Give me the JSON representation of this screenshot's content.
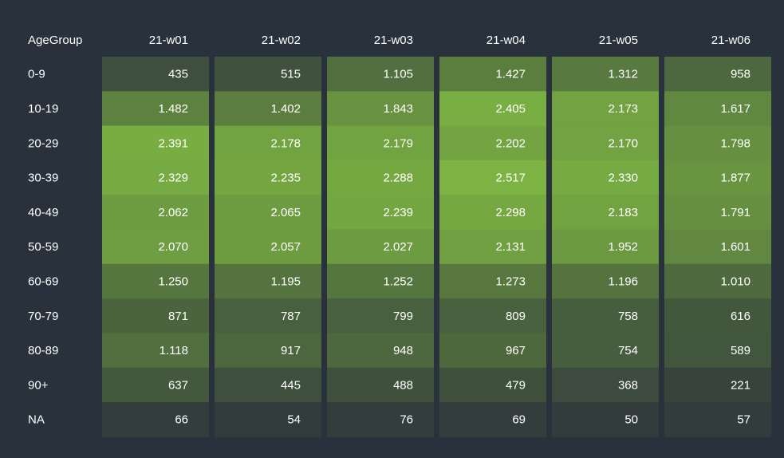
{
  "chart_data": {
    "type": "heatmap",
    "row_header": "AgeGroup",
    "columns": [
      "21-w01",
      "21-w02",
      "21-w03",
      "21-w04",
      "21-w05",
      "21-w06"
    ],
    "rows": [
      {
        "label": "0-9",
        "values": [
          "435",
          "515",
          "1.105",
          "1.427",
          "1.312",
          "958"
        ]
      },
      {
        "label": "10-19",
        "values": [
          "1.482",
          "1.402",
          "1.843",
          "2.405",
          "2.173",
          "1.617"
        ]
      },
      {
        "label": "20-29",
        "values": [
          "2.391",
          "2.178",
          "2.179",
          "2.202",
          "2.170",
          "1.798"
        ]
      },
      {
        "label": "30-39",
        "values": [
          "2.329",
          "2.235",
          "2.288",
          "2.517",
          "2.330",
          "1.877"
        ]
      },
      {
        "label": "40-49",
        "values": [
          "2.062",
          "2.065",
          "2.239",
          "2.298",
          "2.183",
          "1.791"
        ]
      },
      {
        "label": "50-59",
        "values": [
          "2.070",
          "2.057",
          "2.027",
          "2.131",
          "1.952",
          "1.601"
        ]
      },
      {
        "label": "60-69",
        "values": [
          "1.250",
          "1.195",
          "1.252",
          "1.273",
          "1.196",
          "1.010"
        ]
      },
      {
        "label": "70-79",
        "values": [
          "871",
          "787",
          "799",
          "809",
          "758",
          "616"
        ]
      },
      {
        "label": "80-89",
        "values": [
          "1.118",
          "917",
          "948",
          "967",
          "754",
          "589"
        ]
      },
      {
        "label": "90+",
        "values": [
          "637",
          "445",
          "488",
          "479",
          "368",
          "221"
        ]
      },
      {
        "label": "NA",
        "values": [
          "66",
          "54",
          "76",
          "69",
          "50",
          "57"
        ]
      }
    ],
    "color_scale": {
      "low": "#323c3c",
      "high": "#7cb342"
    },
    "colors": {
      "background": "#29323c",
      "text": "#ffffff"
    }
  }
}
